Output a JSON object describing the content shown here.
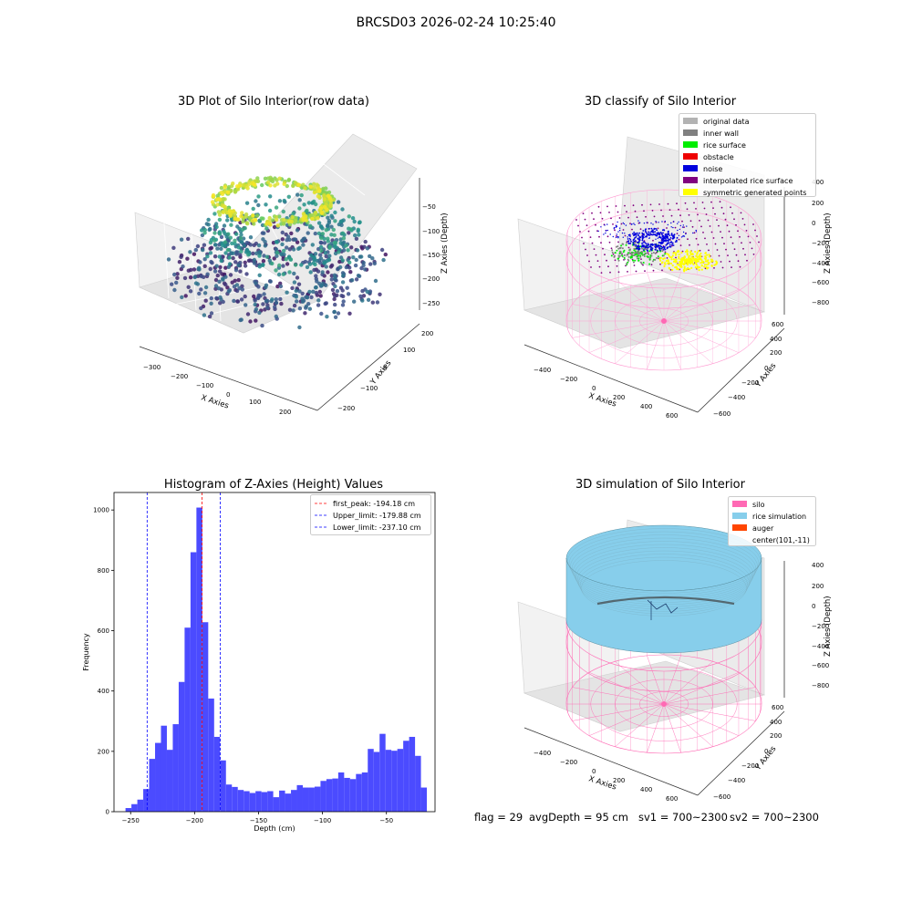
{
  "figure": {
    "suptitle": "BRCSD03 2026-02-24 10:25:40"
  },
  "raw_panel": {
    "title": "3D Plot of Silo Interior(row data)",
    "xlabel": "X Axies",
    "ylabel": "Y Axies",
    "zlabel": "Z Axies (Depth)",
    "xticks": [
      "−300",
      "−200",
      "−100",
      "0",
      "100",
      "200"
    ],
    "yticks": [
      "−200",
      "−100",
      "0",
      "100",
      "200"
    ],
    "zticks": [
      "−50",
      "−100",
      "−150",
      "−200",
      "−250"
    ],
    "colormap": "viridis"
  },
  "classify_panel": {
    "title": "3D classify of Silo Interior",
    "xlabel": "X Axies",
    "ylabel": "Y Axies",
    "zlabel": "Z Axies (Depth)",
    "xticks": [
      "−400",
      "−200",
      "0",
      "200",
      "400",
      "600"
    ],
    "yticks": [
      "−600",
      "−400",
      "−200",
      "0",
      "200",
      "400",
      "600"
    ],
    "zticks": [
      "400",
      "200",
      "0",
      "−200",
      "−400",
      "−600",
      "−800"
    ],
    "legend": [
      {
        "label": "original data",
        "color": "#b3b3b3"
      },
      {
        "label": "inner wall",
        "color": "#808080"
      },
      {
        "label": "rice surface",
        "color": "#00ee00"
      },
      {
        "label": "obstacle",
        "color": "#ee0000"
      },
      {
        "label": "noise",
        "color": "#0000dd"
      },
      {
        "label": "interpolated rice surface",
        "color": "#800080"
      },
      {
        "label": "symmetric generated points",
        "color": "#ffff00"
      }
    ]
  },
  "hist_panel": {
    "title": "Histogram of Z-Axies (Height) Values",
    "xlabel": "Depth (cm)",
    "ylabel": "Frequency",
    "xticks": [
      "−250",
      "−200",
      "−150",
      "−100",
      "−50"
    ],
    "yticks": [
      "0",
      "200",
      "400",
      "600",
      "800",
      "1000"
    ],
    "legend": [
      {
        "label": "first_peak: -194.18 cm",
        "color": "#ff0000"
      },
      {
        "label": "Upper_limit: -179.88 cm",
        "color": "#0000ff"
      },
      {
        "label": "Lower_limit: -237.10 cm",
        "color": "#0000ff"
      }
    ]
  },
  "sim_panel": {
    "title": "3D simulation of Silo Interior",
    "xlabel": "X Axies",
    "ylabel": "Y Axies",
    "zlabel": "Z Axies (Depth)",
    "xticks": [
      "−400",
      "−200",
      "0",
      "200",
      "400",
      "600"
    ],
    "yticks": [
      "−600",
      "−400",
      "−200",
      "0",
      "200",
      "400",
      "600"
    ],
    "zticks": [
      "400",
      "200",
      "0",
      "−200",
      "−400",
      "−600",
      "−800"
    ],
    "legend": [
      {
        "label": "silo",
        "color": "#ff69b4"
      },
      {
        "label": "rice simulation",
        "color": "#87ceeb"
      },
      {
        "label": "auger",
        "color": "#ff4500"
      },
      {
        "label": "center(101,-11)",
        "color": ""
      }
    ]
  },
  "footer": {
    "flag": "flag = 29",
    "avg_depth": "avgDepth = 95 cm",
    "sv1": "sv1 = 700~2300",
    "sv2": "sv2 = 700~2300"
  },
  "colors": {
    "silo_pink": "#ff69b4",
    "rice_blue": "#87ceeb",
    "hist_bar": "#4b4bff"
  },
  "chart_data": [
    {
      "type": "histogram",
      "title": "Histogram of Z-Axies (Height) Values",
      "xlabel": "Depth (cm)",
      "ylabel": "Frequency",
      "xlim": [
        -263,
        -12
      ],
      "ylim": [
        0,
        1058
      ],
      "bin_start": -254,
      "bin_width": 4.62,
      "values": [
        12,
        25,
        40,
        75,
        175,
        228,
        285,
        205,
        290,
        430,
        610,
        860,
        1008,
        628,
        375,
        248,
        170,
        90,
        82,
        72,
        68,
        62,
        68,
        65,
        68,
        48,
        70,
        60,
        72,
        88,
        80,
        80,
        83,
        102,
        108,
        110,
        130,
        112,
        108,
        125,
        130,
        208,
        198,
        258,
        205,
        202,
        208,
        235,
        248,
        185,
        80
      ],
      "vlines": [
        {
          "name": "first_peak",
          "x": -194.18,
          "color": "#ff0000"
        },
        {
          "name": "Upper_limit",
          "x": -179.88,
          "color": "#0000ff"
        },
        {
          "name": "Lower_limit",
          "x": -237.1,
          "color": "#0000ff"
        }
      ],
      "grid": false,
      "legend_position": "top-right"
    },
    {
      "type": "scatter3d",
      "title": "3D Plot of Silo Interior(row data)",
      "xlim": [
        -330,
        270
      ],
      "ylim": [
        -230,
        260
      ],
      "zlim": [
        -270,
        -10
      ],
      "colormap": "viridis"
    },
    {
      "type": "scatter3d",
      "title": "3D classify of Silo Interior",
      "xlim": [
        -500,
        700
      ],
      "ylim": [
        -650,
        650
      ],
      "zlim": [
        -900,
        400
      ],
      "legend_position": "top-right"
    },
    {
      "type": "surface3d",
      "title": "3D simulation of Silo Interior",
      "xlim": [
        -500,
        700
      ],
      "ylim": [
        -650,
        650
      ],
      "zlim": [
        -900,
        400
      ],
      "legend_position": "top-right"
    }
  ]
}
